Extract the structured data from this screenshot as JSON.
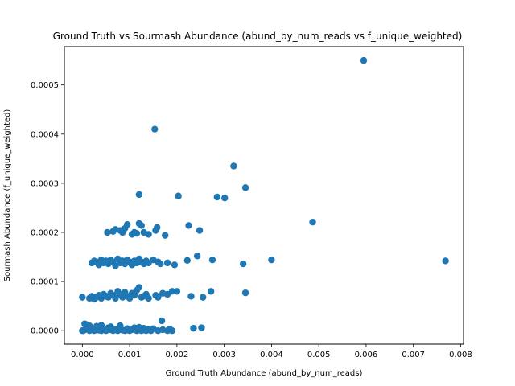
{
  "chart_data": {
    "type": "scatter",
    "title": "Ground Truth vs Sourmash Abundance (abund_by_num_reads vs f_unique_weighted)",
    "xlabel": "Ground Truth Abundance (abund_by_num_reads)",
    "ylabel": "Sourmash Abundance (f_unique_weighted)",
    "xlim": [
      -0.00038,
      0.00806
    ],
    "ylim": [
      -2.75e-05,
      0.000578
    ],
    "x_ticks": [
      "0.000",
      "0.001",
      "0.002",
      "0.003",
      "0.004",
      "0.005",
      "0.006",
      "0.007",
      "0.008"
    ],
    "y_ticks": [
      "0.0000",
      "0.0001",
      "0.0002",
      "0.0003",
      "0.0004",
      "0.0005"
    ],
    "grid": false,
    "legend": "none",
    "marker_color": "#1f77b4",
    "series": [
      {
        "points": [
          [
            0.0,
            0.0
          ],
          [
            2e-05,
            0.0
          ],
          [
            5e-05,
            2e-06
          ],
          [
            0.0001,
            4e-06
          ],
          [
            0.00015,
            0.0
          ],
          [
            0.0002,
            3e-06
          ],
          [
            0.00025,
            0.0
          ],
          [
            0.0003,
            5e-06
          ],
          [
            0.00035,
            1e-06
          ],
          [
            0.0004,
            0.0
          ],
          [
            0.00045,
            4e-06
          ],
          [
            0.0005,
            0.0
          ],
          [
            0.00055,
            6e-06
          ],
          [
            0.0006,
            2e-06
          ],
          [
            0.00065,
            0.0
          ],
          [
            0.0007,
            3e-06
          ],
          [
            0.00075,
            0.0
          ],
          [
            0.0008,
            5e-06
          ],
          [
            0.00085,
            1e-06
          ],
          [
            0.0009,
            0.0
          ],
          [
            0.00095,
            4e-06
          ],
          [
            0.001,
            0.0
          ],
          [
            0.00105,
            2e-06
          ],
          [
            0.0011,
            6e-06
          ],
          [
            0.00115,
            0.0
          ],
          [
            0.0012,
            3e-06
          ],
          [
            0.00125,
            0.0
          ],
          [
            0.0013,
            5e-06
          ],
          [
            0.00135,
            0.0
          ],
          [
            0.0014,
            2e-06
          ],
          [
            0.00145,
            0.0
          ],
          [
            0.0015,
            4e-06
          ],
          [
            0.0016,
            0.0
          ],
          [
            0.0017,
            2e-06
          ],
          [
            0.0018,
            0.0
          ],
          [
            0.00185,
            3e-06
          ],
          [
            0.0019,
            0.0
          ],
          [
            0.0001,
            1.2e-05
          ],
          [
            5e-05,
            1.4e-05
          ],
          [
            0.00015,
            1e-05
          ],
          [
            0.0003,
            9e-06
          ],
          [
            0.0004,
            1.1e-05
          ],
          [
            0.0006,
            8e-06
          ],
          [
            0.0008,
            1e-05
          ],
          [
            0.0012,
            7e-06
          ],
          [
            0.00168,
            2e-05
          ],
          [
            0.00235,
            5e-06
          ],
          [
            0.00252,
            6e-06
          ],
          [
            0.0,
            6.8e-05
          ],
          [
            0.00015,
            6.6e-05
          ],
          [
            0.0002,
            7e-05
          ],
          [
            0.00025,
            6.4e-05
          ],
          [
            0.0003,
            6.8e-05
          ],
          [
            0.00035,
            7.2e-05
          ],
          [
            0.0004,
            6.6e-05
          ],
          [
            0.00045,
            7.4e-05
          ],
          [
            0.0005,
            7e-05
          ],
          [
            0.00055,
            6.8e-05
          ],
          [
            0.0006,
            7.6e-05
          ],
          [
            0.00065,
            7.2e-05
          ],
          [
            0.0007,
            6.6e-05
          ],
          [
            0.00075,
            8e-05
          ],
          [
            0.0008,
            7.4e-05
          ],
          [
            0.00085,
            6.8e-05
          ],
          [
            0.0009,
            7.8e-05
          ],
          [
            0.00095,
            7e-05
          ],
          [
            0.001,
            6.6e-05
          ],
          [
            0.00105,
            7.6e-05
          ],
          [
            0.0011,
            7.2e-05
          ],
          [
            0.00115,
            8.2e-05
          ],
          [
            0.0012,
            8.8e-05
          ],
          [
            0.00125,
            6.8e-05
          ],
          [
            0.0013,
            7e-05
          ],
          [
            0.00135,
            7.4e-05
          ],
          [
            0.0014,
            6.6e-05
          ],
          [
            0.00155,
            7.2e-05
          ],
          [
            0.0016,
            6.8e-05
          ],
          [
            0.0017,
            7.6e-05
          ],
          [
            0.0018,
            7.4e-05
          ],
          [
            0.0019,
            8e-05
          ],
          [
            0.002,
            8e-05
          ],
          [
            0.0023,
            7e-05
          ],
          [
            0.00255,
            6.8e-05
          ],
          [
            0.00272,
            8e-05
          ],
          [
            0.00345,
            7.7e-05
          ],
          [
            0.0002,
            0.000138
          ],
          [
            0.00025,
            0.000142
          ],
          [
            0.0003,
            0.00014
          ],
          [
            0.00035,
            0.000134
          ],
          [
            0.0004,
            0.000144
          ],
          [
            0.00045,
            0.000138
          ],
          [
            0.0005,
            0.000142
          ],
          [
            0.00055,
            0.000136
          ],
          [
            0.0006,
            0.000144
          ],
          [
            0.00065,
            0.00014
          ],
          [
            0.0007,
            0.000132
          ],
          [
            0.00075,
            0.000146
          ],
          [
            0.0008,
            0.000138
          ],
          [
            0.00085,
            0.000142
          ],
          [
            0.0009,
            0.000136
          ],
          [
            0.00095,
            0.000144
          ],
          [
            0.001,
            0.00014
          ],
          [
            0.00105,
            0.000134
          ],
          [
            0.0011,
            0.000142
          ],
          [
            0.00115,
            0.000138
          ],
          [
            0.0012,
            0.000146
          ],
          [
            0.00125,
            0.00014
          ],
          [
            0.0013,
            0.000136
          ],
          [
            0.00135,
            0.000142
          ],
          [
            0.0014,
            0.000138
          ],
          [
            0.0015,
            0.000144
          ],
          [
            0.0016,
            0.00014
          ],
          [
            0.00165,
            0.000136
          ],
          [
            0.0018,
            0.000138
          ],
          [
            0.00195,
            0.000134
          ],
          [
            0.00222,
            0.000143
          ],
          [
            0.00243,
            0.000152
          ],
          [
            0.00275,
            0.000144
          ],
          [
            0.0034,
            0.000136
          ],
          [
            0.004,
            0.000144
          ],
          [
            0.00768,
            0.000142
          ],
          [
            0.00053,
            0.0002
          ],
          [
            0.00065,
            0.000202
          ],
          [
            0.0007,
            0.000206
          ],
          [
            0.0008,
            0.000204
          ],
          [
            0.00085,
            0.0002
          ],
          [
            0.0009,
            0.000208
          ],
          [
            0.00095,
            0.000216
          ],
          [
            0.00105,
            0.000196
          ],
          [
            0.0011,
            0.0002
          ],
          [
            0.00115,
            0.000198
          ],
          [
            0.0012,
            0.000218
          ],
          [
            0.00125,
            0.000214
          ],
          [
            0.0013,
            0.0002
          ],
          [
            0.0014,
            0.000196
          ],
          [
            0.00155,
            0.000204
          ],
          [
            0.00158,
            0.00021
          ],
          [
            0.00175,
            0.000194
          ],
          [
            0.00225,
            0.000214
          ],
          [
            0.00248,
            0.000204
          ],
          [
            0.0012,
            0.000277
          ],
          [
            0.00203,
            0.000274
          ],
          [
            0.00285,
            0.000272
          ],
          [
            0.00301,
            0.00027
          ],
          [
            0.00345,
            0.000291
          ],
          [
            0.0032,
            0.000335
          ],
          [
            0.00487,
            0.000221
          ],
          [
            0.00153,
            0.00041
          ],
          [
            0.00595,
            0.00055
          ]
        ]
      }
    ]
  }
}
